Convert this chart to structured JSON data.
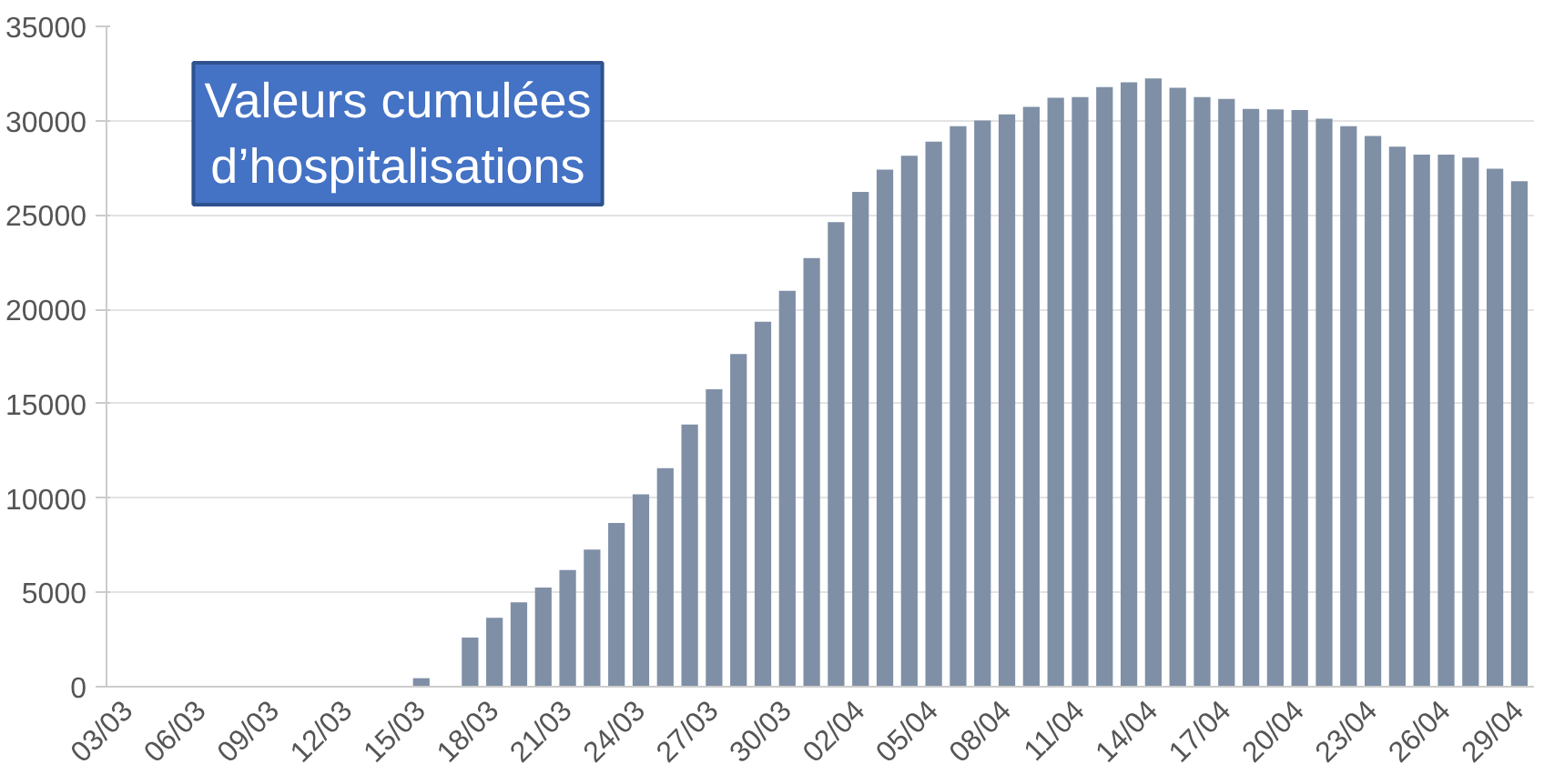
{
  "chart_data": {
    "type": "bar",
    "title": "Valeurs cumulées d’hospitalisations",
    "categories": [
      "03/03",
      null,
      null,
      "06/03",
      null,
      null,
      "09/03",
      null,
      null,
      "12/03",
      null,
      null,
      "15/03",
      null,
      null,
      "18/03",
      null,
      null,
      "21/03",
      null,
      null,
      "24/03",
      null,
      null,
      "27/03",
      null,
      null,
      "30/03",
      null,
      null,
      "02/04",
      null,
      null,
      "05/04",
      null,
      null,
      "08/04",
      null,
      null,
      "11/04",
      null,
      null,
      "14/04",
      null,
      null,
      "17/04",
      null,
      null,
      "20/04",
      null,
      null,
      "23/04",
      null,
      null,
      "26/04",
      null,
      null,
      "29/04"
    ],
    "series": [
      {
        "color": "#7f8fa6",
        "values": [
          0,
          0,
          0,
          0,
          0,
          0,
          0,
          0,
          0,
          0,
          0,
          0,
          450,
          0,
          2600,
          3650,
          4470,
          5260,
          6180,
          7270,
          8680,
          10200,
          11580,
          13900,
          15760,
          17630,
          19340,
          20980,
          22720,
          24620,
          26230,
          27410,
          28140,
          28890,
          29710,
          30010,
          30330,
          30730,
          31220,
          31250,
          31780,
          32040,
          32240,
          31750,
          31250,
          31160,
          30630,
          30600,
          30570,
          30110,
          29710,
          29190,
          28630,
          28200,
          28200,
          28040,
          27450,
          26790
        ]
      }
    ],
    "ylim": [
      0,
      35000
    ],
    "yticks": [
      0,
      5000,
      10000,
      15000,
      20000,
      25000,
      30000,
      35000
    ],
    "grid": "y"
  }
}
